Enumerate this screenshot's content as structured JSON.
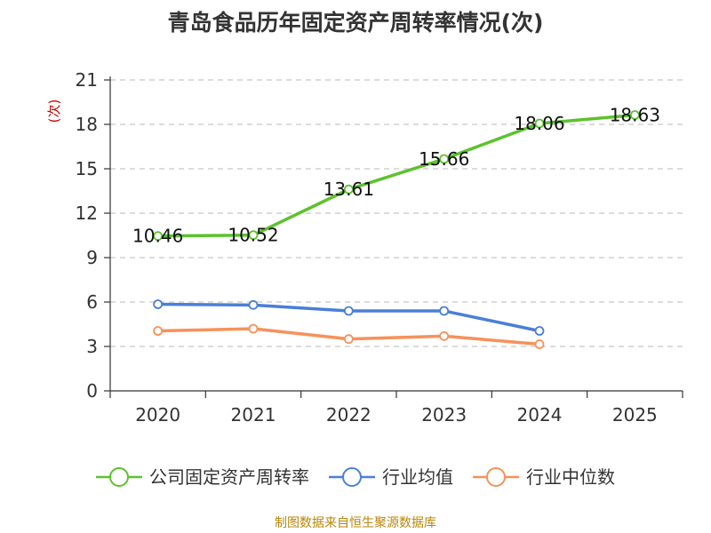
{
  "title": "青岛食品历年固定资产周转率情况(次)",
  "source_note": "制图数据来自恒生聚源数据库",
  "chart_data": {
    "type": "line",
    "title": "青岛食品历年固定资产周转率情况(次)",
    "categories": [
      "2020",
      "2021",
      "2022",
      "2023",
      "2024",
      "2025"
    ],
    "ylabel": "(次)",
    "ylim": [
      0,
      21
    ],
    "yticks": [
      0,
      3,
      6,
      9,
      12,
      15,
      18,
      21
    ],
    "grid": true,
    "legend_position": "bottom",
    "series": [
      {
        "name": "公司固定资产周转率",
        "color": "#5cc22d",
        "values": [
          10.46,
          10.52,
          13.61,
          15.66,
          18.06,
          18.63
        ],
        "labels": [
          "10.46",
          "10.52",
          "13.61",
          "15.66",
          "18.06",
          "18.63"
        ],
        "show_labels": true
      },
      {
        "name": "行业均值",
        "color": "#4a7fd8",
        "values": [
          5.85,
          5.8,
          5.4,
          5.4,
          4.05,
          null
        ],
        "show_labels": false
      },
      {
        "name": "行业中位数",
        "color": "#f7915a",
        "values": [
          4.05,
          4.2,
          3.5,
          3.7,
          3.15,
          null
        ],
        "show_labels": false
      }
    ]
  }
}
